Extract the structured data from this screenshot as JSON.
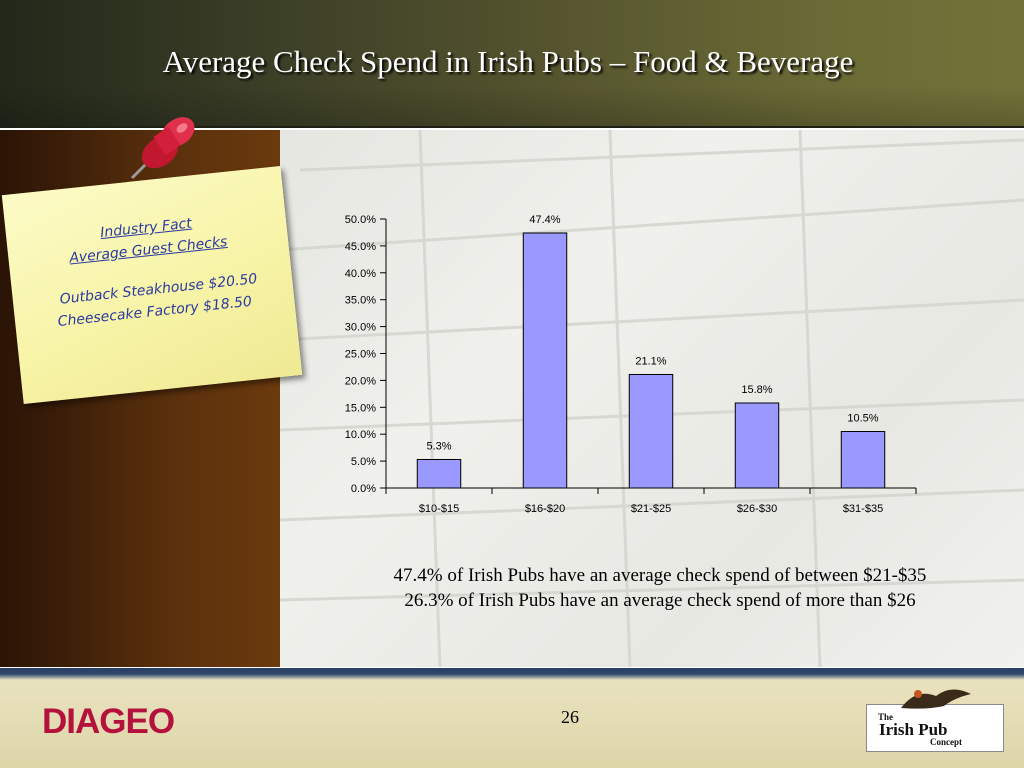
{
  "header": {
    "title": "Average Check Spend in Irish Pubs – Food & Beverage"
  },
  "note": {
    "heading_1": "Industry Fact",
    "heading_2": "Average Guest Checks",
    "line_1": "Outback Steakhouse  $20.50",
    "line_2": "Cheesecake Factory  $18.50"
  },
  "chart_data": {
    "type": "bar",
    "categories": [
      "$10-$15",
      "$16-$20",
      "$21-$25",
      "$26-$30",
      "$31-$35"
    ],
    "values": [
      5.3,
      47.4,
      21.1,
      15.8,
      10.5
    ],
    "value_labels": [
      "5.3%",
      "47.4%",
      "21.1%",
      "15.8%",
      "10.5%"
    ],
    "y_ticks": [
      "0.0%",
      "5.0%",
      "10.0%",
      "15.0%",
      "20.0%",
      "25.0%",
      "30.0%",
      "35.0%",
      "40.0%",
      "45.0%",
      "50.0%"
    ],
    "ylim": [
      0,
      50
    ],
    "title": "",
    "xlabel": "",
    "ylabel": "",
    "grid": false,
    "legend": "none",
    "bar_color": "#9999ff"
  },
  "caption": {
    "line_1": "47.4% of Irish Pubs have an average check spend of between $21-$35",
    "line_2": "26.3% of Irish Pubs have an average check spend of more than $26"
  },
  "footer": {
    "brand": "DIAGEO",
    "page_number": "26",
    "logo_line_1": "The",
    "logo_line_2": "Irish Pub",
    "logo_line_3": "Concept"
  },
  "colors": {
    "brand_red": "#b4123c",
    "note_text": "#2a3aa0",
    "pin_red": "#d21f3c"
  }
}
